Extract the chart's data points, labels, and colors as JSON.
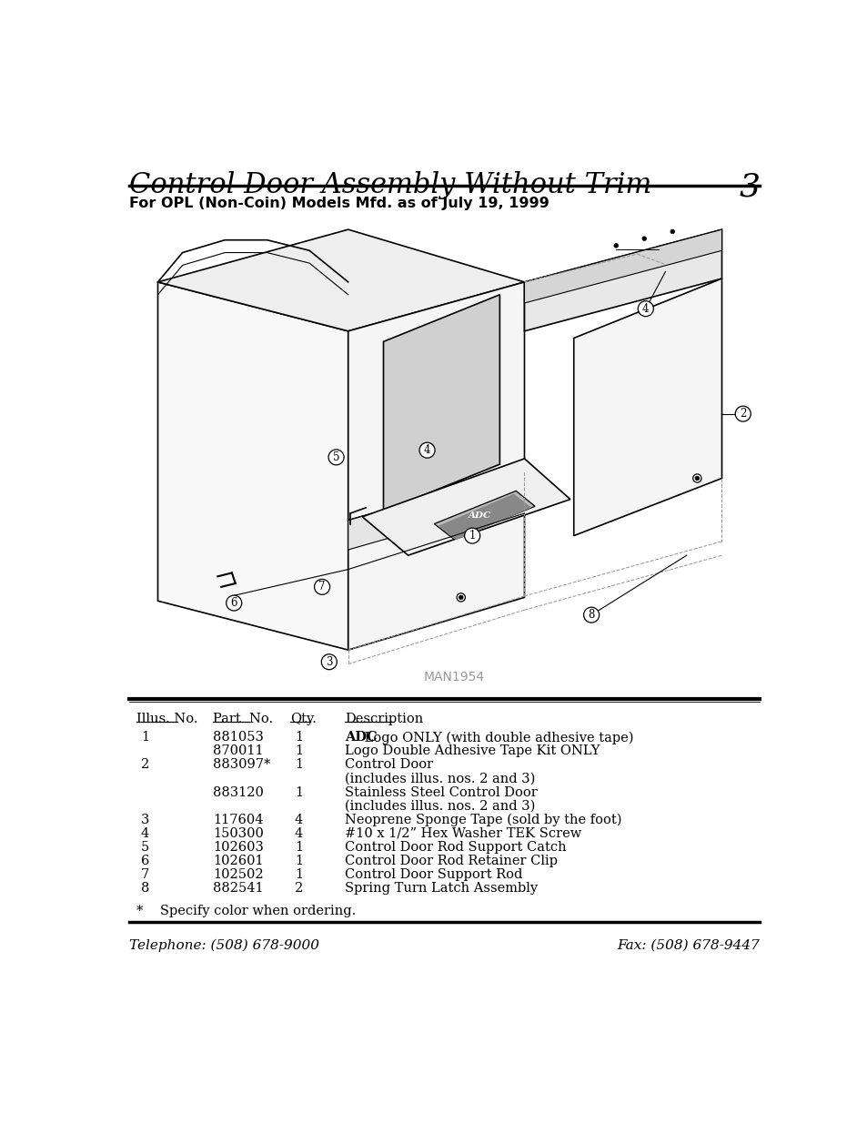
{
  "title": "Control Door Assembly Without Trim",
  "page_number": "3",
  "subtitle": "For OPL (Non-Coin) Models Mfd. as of July 19, 1999",
  "image_label": "MAN1954",
  "table_headers": [
    "Illus. No.",
    "Part  No.",
    "Qty.",
    "Description"
  ],
  "footnote": "*    Specify color when ordering.",
  "footer_left": "Telephone: (508) 678-9000",
  "footer_right": "Fax: (508) 678-9447",
  "bg_color": "#ffffff",
  "text_color": "#000000"
}
